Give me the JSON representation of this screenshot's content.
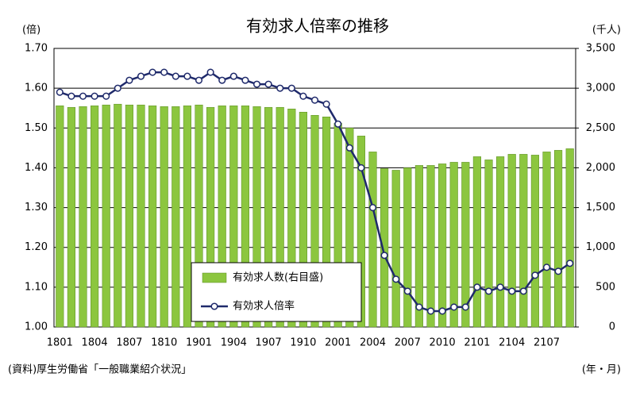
{
  "chart_data": {
    "type": "bar-line",
    "title": "有効求人倍率の推移",
    "y_label": "(倍)",
    "y2_label": "(千人)",
    "x_label": "(年・月)",
    "source": "(資料)厚生労働省「一般職業紹介状況」",
    "categories": [
      "1801",
      null,
      null,
      "1804",
      null,
      null,
      "1807",
      null,
      null,
      "1810",
      null,
      null,
      "1901",
      null,
      null,
      "1904",
      null,
      null,
      "1907",
      null,
      null,
      "1910",
      null,
      null,
      "2001",
      null,
      null,
      "2004",
      null,
      null,
      "2007",
      null,
      null,
      "2010",
      null,
      null,
      "2101",
      null,
      null,
      "2104",
      null,
      null,
      "2107",
      null,
      null
    ],
    "series": [
      {
        "name": "有効求人数(右目盛)",
        "type": "bar",
        "axis": "y2",
        "color": "#8cc63f",
        "values": [
          2780,
          2760,
          2770,
          2780,
          2790,
          2800,
          2790,
          2790,
          2780,
          2770,
          2770,
          2780,
          2790,
          2760,
          2780,
          2780,
          2780,
          2770,
          2760,
          2760,
          2740,
          2700,
          2660,
          2640,
          2560,
          2500,
          2400,
          2200,
          1990,
          1970,
          2000,
          2030,
          2030,
          2050,
          2070,
          2070,
          2140,
          2100,
          2140,
          2170,
          2170,
          2160,
          2200,
          2220,
          2240
        ]
      },
      {
        "name": "有効求人倍率",
        "type": "line",
        "axis": "y",
        "color": "#1f2a6b",
        "values": [
          1.59,
          1.58,
          1.58,
          1.58,
          1.58,
          1.6,
          1.62,
          1.63,
          1.64,
          1.64,
          1.63,
          1.63,
          1.62,
          1.64,
          1.62,
          1.63,
          1.62,
          1.61,
          1.61,
          1.6,
          1.6,
          1.58,
          1.57,
          1.56,
          1.51,
          1.45,
          1.4,
          1.3,
          1.18,
          1.12,
          1.09,
          1.05,
          1.04,
          1.04,
          1.05,
          1.05,
          1.1,
          1.09,
          1.1,
          1.09,
          1.09,
          1.13,
          1.15,
          1.14,
          1.16
        ]
      }
    ],
    "ylim": [
      1,
      1.7
    ],
    "yticks": [
      {
        "value": 1,
        "label": "1.00"
      },
      {
        "value": 1.1,
        "label": "1.10"
      },
      {
        "value": 1.2,
        "label": "1.20"
      },
      {
        "value": 1.3,
        "label": "1.30"
      },
      {
        "value": 1.4,
        "label": "1.40"
      },
      {
        "value": 1.5,
        "label": "1.50"
      },
      {
        "value": 1.6,
        "label": "1.60"
      },
      {
        "value": 1.7,
        "label": "1.70"
      }
    ],
    "y2lim": [
      0,
      3500
    ],
    "y2ticks": [
      0,
      {
        "value": 500,
        "label": "500"
      },
      {
        "value": 1000,
        "label": "1,000"
      },
      {
        "value": 1500,
        "label": "1,500"
      },
      {
        "value": 2000,
        "label": "2,000"
      },
      {
        "value": 2500,
        "label": "2,500"
      },
      {
        "value": 3000,
        "label": "3,000"
      },
      {
        "value": 3500,
        "label": "3,500"
      }
    ],
    "grid": true
  }
}
